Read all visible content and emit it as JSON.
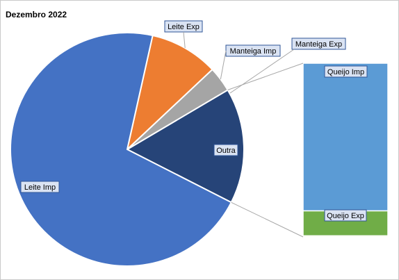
{
  "chart_data": {
    "type": "bar-of-pie",
    "title": "Dezembro 2022",
    "pie": [
      {
        "name": "Leite Imp",
        "value": 71.0,
        "color": "#4472C4"
      },
      {
        "name": "Leite Exp",
        "value": 9.5,
        "color": "#ED7D31"
      },
      {
        "name": "Manteiga Imp",
        "value": 3.5,
        "color": "#A5A5A5"
      },
      {
        "name": "Outra",
        "value": 16.0,
        "color": "#264478",
        "is_other": true
      }
    ],
    "bar": [
      {
        "name": "Queijo Imp",
        "value": 13.6,
        "color": "#5B9BD5"
      },
      {
        "name": "Queijo Exp",
        "value": 2.3,
        "color": "#70AD47"
      },
      {
        "name": "Manteiga Exp",
        "value": 0.1,
        "color": "#FFC000"
      }
    ]
  }
}
